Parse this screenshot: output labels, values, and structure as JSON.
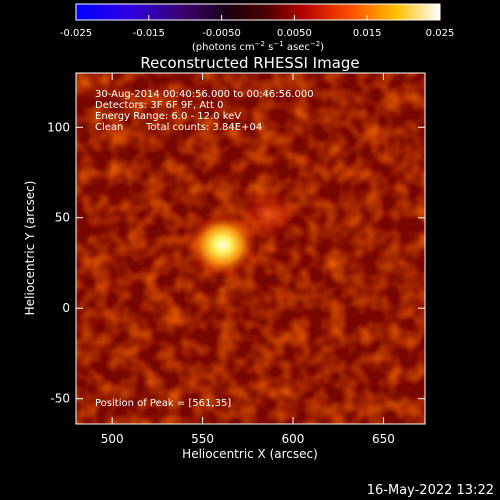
{
  "colorbar": {
    "ticks": [
      "-0.025",
      "-0.015",
      "-0.0050",
      "0.0050",
      "0.015",
      "0.025"
    ],
    "tick_values": [
      -0.025,
      -0.015,
      -0.005,
      0.005,
      0.015,
      0.025
    ],
    "range": [
      -0.025,
      0.025
    ],
    "unit_label": "(photons cm",
    "unit_exp1": "−2",
    "unit_mid": " s",
    "unit_exp2": "−1",
    "unit_mid2": " asec",
    "unit_exp3": "−2",
    "unit_end": ")"
  },
  "plot": {
    "title": "Reconstructed RHESSI Image",
    "info_time": "30-Aug-2014 00:40:56.000 to 00:46:56.000",
    "info_detectors": "Detectors: 3F 6F 9F, Att 0",
    "info_energy": "Energy Range: 6.0 - 12.0 keV",
    "info_clean": "Clean",
    "info_counts": "Total counts: 3.84E+04",
    "peak_label": "Position of Peak = [561,35]",
    "xlabel": "Heliocentric X (arcsec)",
    "ylabel": "Heliocentric Y (arcsec)",
    "date_stamp": "16-May-2022 13:22"
  },
  "chart_data": {
    "type": "heatmap",
    "title": "Reconstructed RHESSI Image",
    "xlabel": "Heliocentric X (arcsec)",
    "ylabel": "Heliocentric Y (arcsec)",
    "xlim": [
      480,
      673
    ],
    "ylim": [
      -64,
      130
    ],
    "xticks": [
      500,
      550,
      600,
      650
    ],
    "yticks": [
      -50,
      0,
      50,
      100
    ],
    "colorscale": "red-temperature",
    "peak": {
      "x": 561,
      "y": 35
    },
    "sources": [
      {
        "x": 561,
        "y": 35,
        "amplitude": 1.0,
        "width": 9
      },
      {
        "x": 586,
        "y": 52,
        "amplitude": 0.3,
        "width": 7
      }
    ]
  },
  "colors": {
    "background": "#000000",
    "foreground": "#ffffff"
  }
}
